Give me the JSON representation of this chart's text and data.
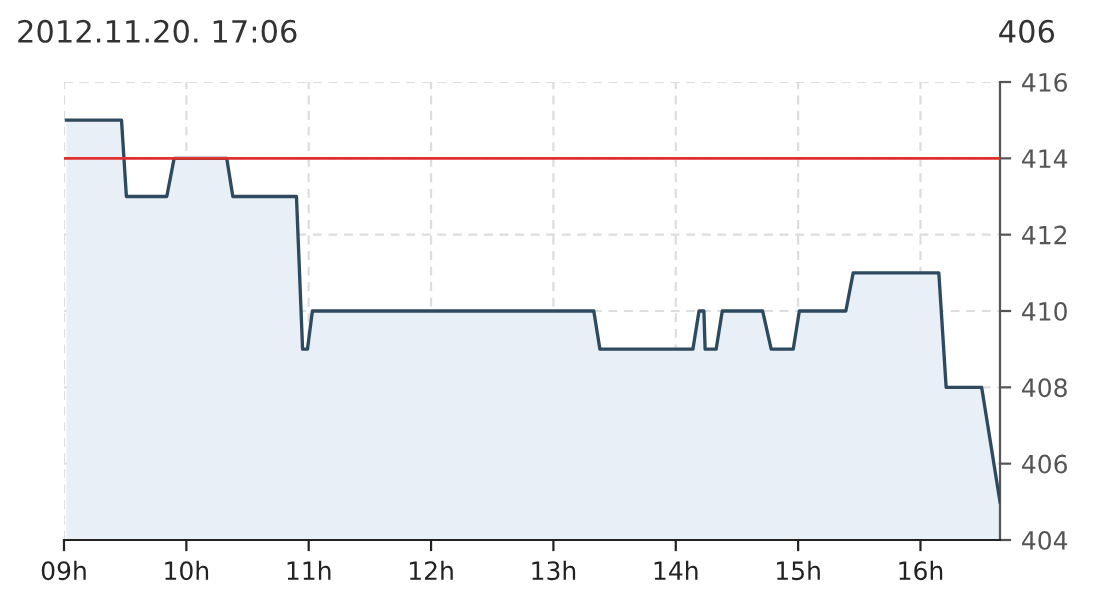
{
  "chart_data": {
    "type": "area",
    "title": "2012.11.20. 17:06",
    "subtitle": "406",
    "x": [
      9.02,
      9.47,
      9.51,
      9.84,
      9.9,
      10.33,
      10.38,
      10.9,
      10.95,
      10.99,
      11.03,
      13.33,
      13.38,
      14.14,
      14.19,
      14.23,
      14.24,
      14.33,
      14.38,
      14.71,
      14.78,
      14.96,
      15.01,
      15.39,
      15.45,
      16.15,
      16.21,
      16.5,
      16.65
    ],
    "series": [
      {
        "color": "#2e4a5e",
        "values": [
          415,
          415,
          413,
          413,
          414,
          414,
          413,
          413,
          409,
          409,
          410,
          410,
          409,
          409,
          410,
          410,
          409,
          409,
          410,
          410,
          409,
          409,
          410,
          410,
          411,
          411,
          408,
          408,
          405
        ]
      }
    ],
    "xlim": [
      9,
      16.65
    ],
    "ylim": [
      404,
      416
    ],
    "xticks": [
      {
        "value": 9,
        "label": "09h"
      },
      {
        "value": 10,
        "label": "10h"
      },
      {
        "value": 11,
        "label": "11h"
      },
      {
        "value": 12,
        "label": "12h"
      },
      {
        "value": 13,
        "label": "13h"
      },
      {
        "value": 14,
        "label": "14h"
      },
      {
        "value": 15,
        "label": "15h"
      },
      {
        "value": 16,
        "label": "16h"
      }
    ],
    "yticks": [
      404,
      406,
      408,
      410,
      412,
      414,
      416
    ],
    "ref_lines": [
      {
        "axis": "y",
        "value": 414,
        "color": "#e03030"
      }
    ],
    "grid": true,
    "marker": "none",
    "line_style": "solid"
  }
}
